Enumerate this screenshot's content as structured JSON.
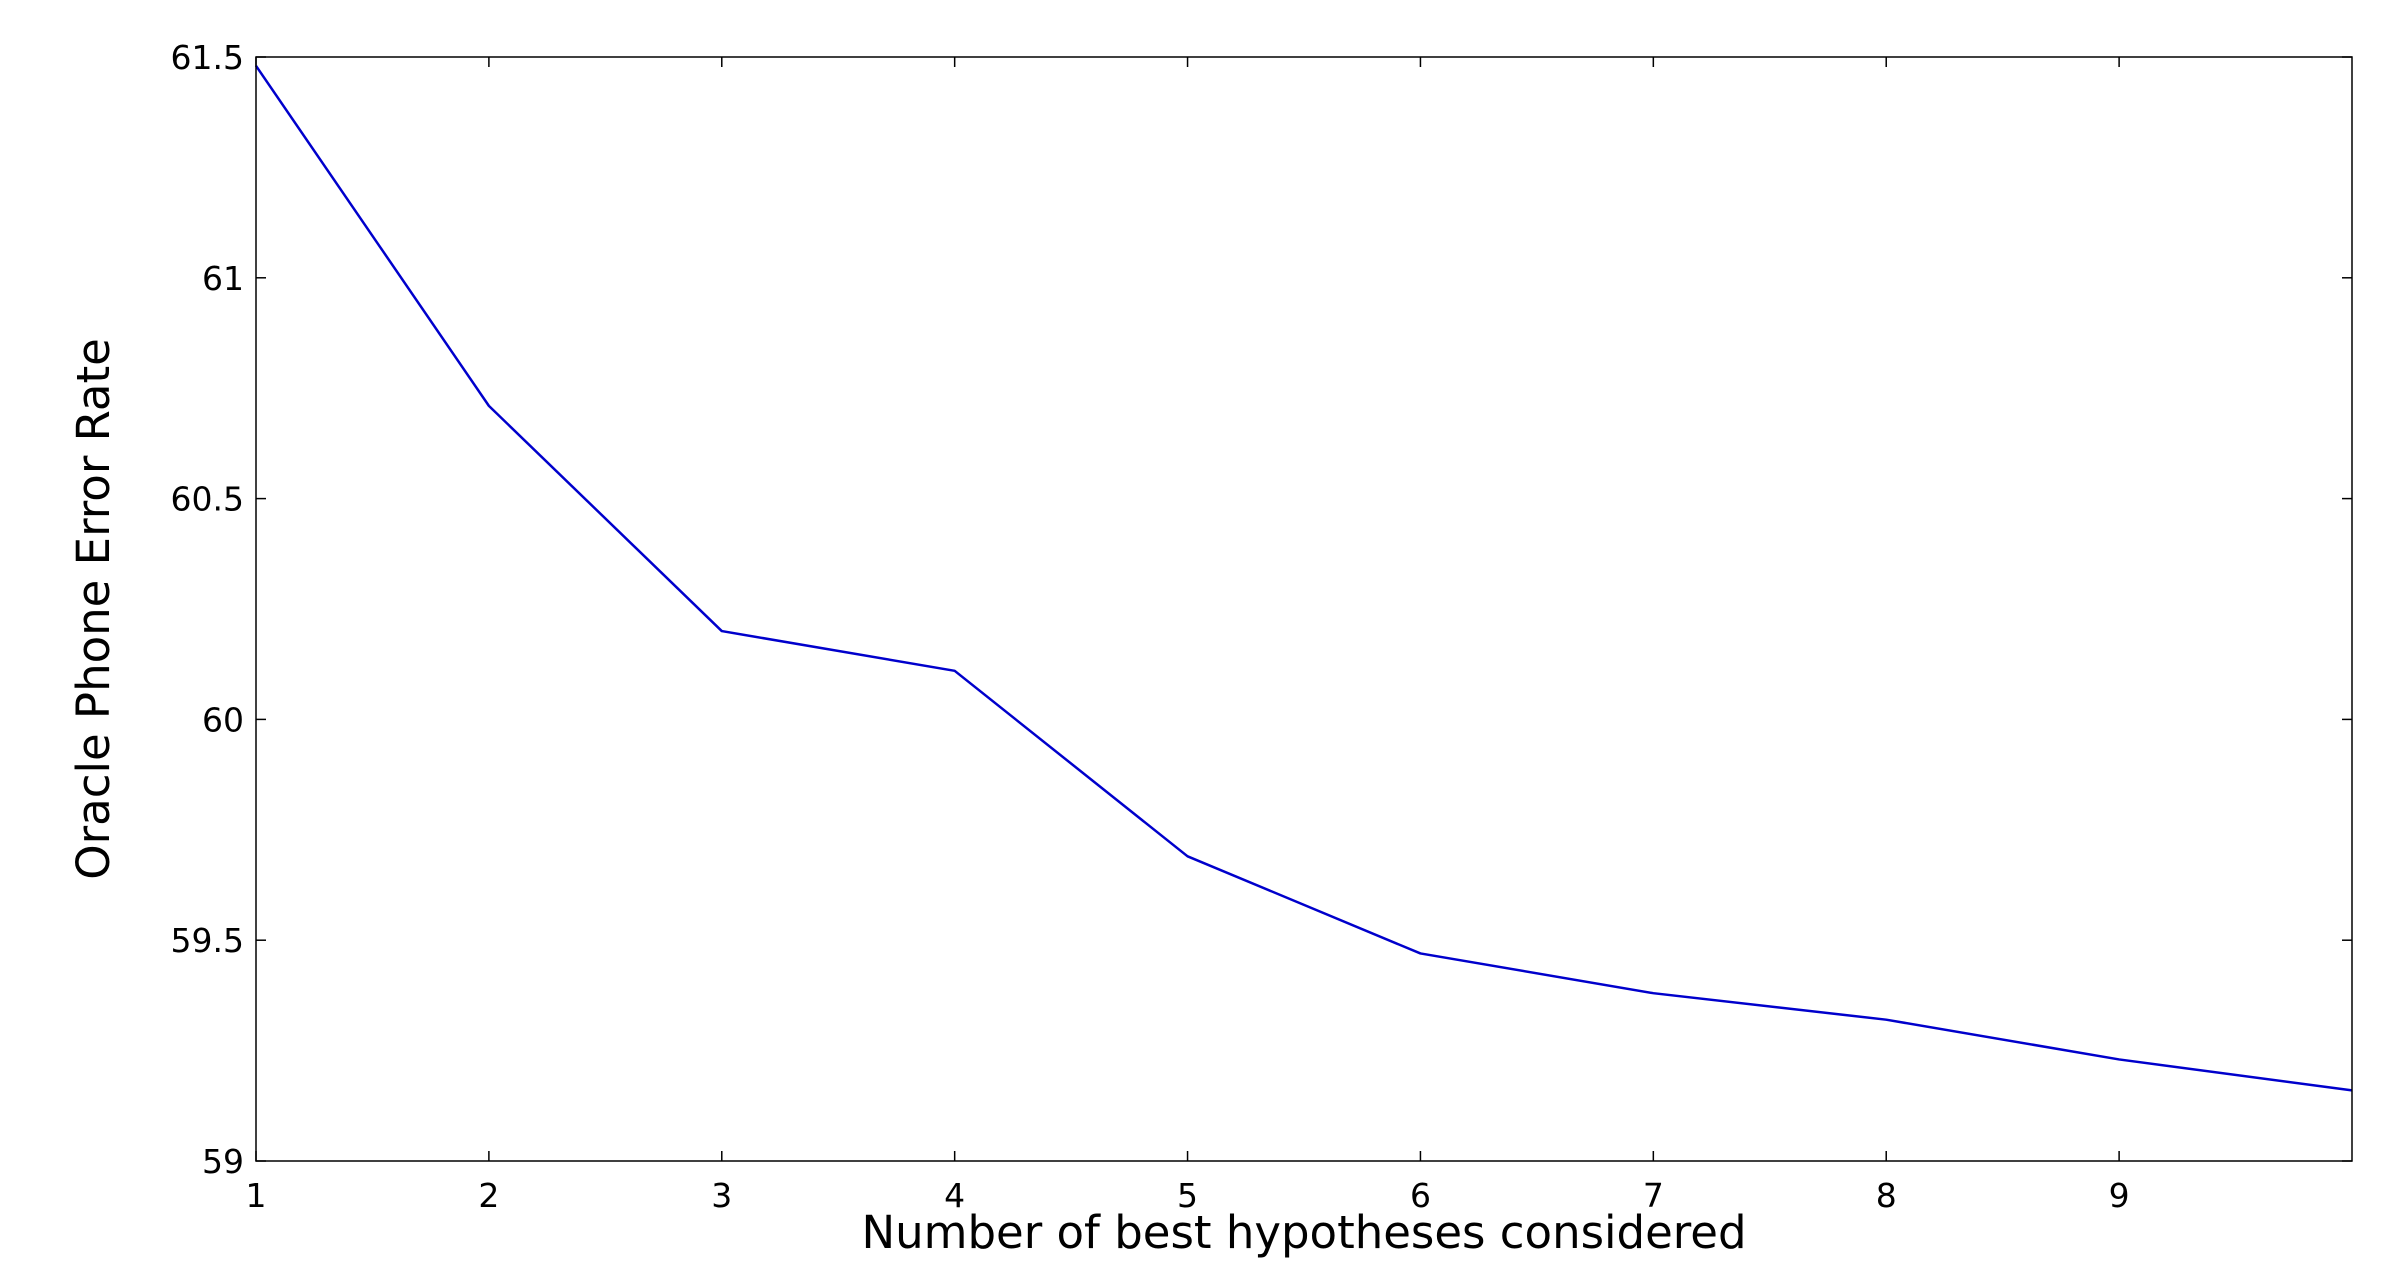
{
  "chart_data": {
    "type": "line",
    "title": "",
    "xlabel": "Number of best hypotheses considered",
    "ylabel": "Oracle Phone Error Rate",
    "xlim": [
      1,
      10
    ],
    "ylim": [
      59,
      61.5
    ],
    "xticks": [
      "1",
      "2",
      "3",
      "4",
      "5",
      "6",
      "7",
      "8",
      "9"
    ],
    "yticks": [
      "59",
      "59.5",
      "60",
      "60.5",
      "61",
      "61.5"
    ],
    "grid": false,
    "legend": "none",
    "series": [
      {
        "color": "#0000cc",
        "x": [
          1,
          2,
          3,
          4,
          5,
          6,
          7,
          8,
          9,
          10
        ],
        "y": [
          61.48,
          60.71,
          60.2,
          60.11,
          59.69,
          59.47,
          59.38,
          59.32,
          59.23,
          59.16
        ]
      }
    ]
  }
}
